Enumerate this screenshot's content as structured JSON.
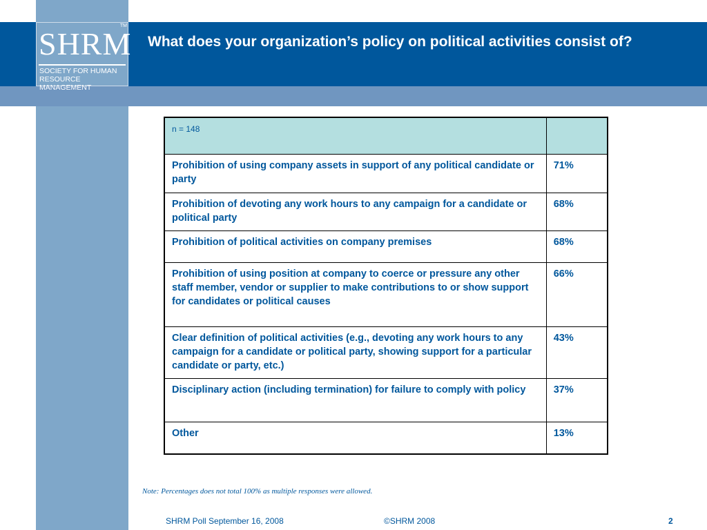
{
  "colors": {
    "title_band": "#00579c",
    "sub_band": "#7096c0",
    "left_stripe": "#7fa7c9",
    "table_header": "#b4dfe0",
    "text_blue": "#00579c"
  },
  "logo": {
    "letters": "SHRM",
    "tm": "TM",
    "text": "SOCIETY FOR HUMAN\nRESOURCE MANAGEMENT"
  },
  "slide": {
    "title": "What does your organization’s policy on political activities consist of?"
  },
  "table": {
    "header": {
      "label": "n = 148",
      "value": ""
    },
    "rows": [
      {
        "label": "Prohibition of using company assets in support of any political candidate or party",
        "value": "71%"
      },
      {
        "label": "Prohibition of devoting any work hours to any campaign for a candidate or political party",
        "value": "68%"
      },
      {
        "label": "Prohibition of political activities on company premises",
        "value": "68%"
      },
      {
        "label": "Prohibition of using position at company to coerce or pressure any other staff member, vendor or supplier to make contributions to or show support for candidates or political causes",
        "value": "66%"
      },
      {
        "label": "Clear definition of political activities (e.g., devoting any work hours to any campaign for a candidate or political party, showing support for a particular candidate or party, etc.)",
        "value": "43%"
      },
      {
        "label": "Disciplinary action (including termination) for failure to comply with policy",
        "value": "37%"
      },
      {
        "label": "Other",
        "value": "13%"
      }
    ]
  },
  "note": "Note: Percentages does not total 100% as multiple responses were allowed.",
  "footer": {
    "left": "SHRM Poll September 16, 2008",
    "center": "©SHRM 2008",
    "page": "2"
  }
}
